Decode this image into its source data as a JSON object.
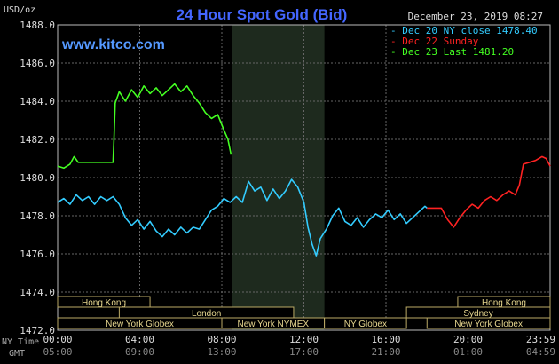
{
  "chart_data": {
    "type": "line",
    "title": "24 Hour Spot Gold (Bid)",
    "website": "www.kitco.com",
    "timestamp": "December 23, 2019 08:27",
    "y_unit_label": "USD/oz",
    "ylim": [
      1472.0,
      1488.0
    ],
    "y_ticks": [
      "1488.0",
      "1486.0",
      "1484.0",
      "1482.0",
      "1480.0",
      "1478.0",
      "1476.0",
      "1474.0",
      "1472.0"
    ],
    "x_axis": {
      "row_labels": [
        "NY Time",
        "GMT"
      ],
      "ny_ticks": [
        "00:00",
        "04:00",
        "08:00",
        "12:00",
        "16:00",
        "20:00",
        "23:59"
      ],
      "gmt_ticks": [
        "05:00",
        "09:00",
        "13:00",
        "17:00",
        "21:00",
        "01:00",
        "04:59"
      ],
      "xlim": [
        0,
        24
      ]
    },
    "legend": {
      "position": "top-right",
      "entries": [
        {
          "label": "Dec 20 NY close 1478.40",
          "color": "#33ccff"
        },
        {
          "label": "Dec 22 Sunday",
          "color": "#ff2222"
        },
        {
          "label": "Dec 23 Last 1481.20",
          "color": "#44ff22"
        }
      ]
    },
    "shaded_range": [
      8.5,
      13.0
    ],
    "sessions": [
      {
        "label": "Hong Kong",
        "row": 0,
        "x0": 0,
        "x1": 4.5
      },
      {
        "label": "Hong Kong",
        "row": 0,
        "x0": 19.5,
        "x1": 24
      },
      {
        "label": "London",
        "row": 1,
        "x0": 3.0,
        "x1": 11.5
      },
      {
        "label": "Sydney",
        "row": 1,
        "x0": 17.0,
        "x1": 24
      },
      {
        "label": "New York Globex",
        "row": 2,
        "x0": 0,
        "x1": 8.0
      },
      {
        "label": "New York NYMEX",
        "row": 2,
        "x0": 8.0,
        "x1": 13.0
      },
      {
        "label": "NY Globex",
        "row": 2,
        "x0": 13.0,
        "x1": 17.0
      },
      {
        "label": "New York Globex",
        "row": 2,
        "x0": 18.0,
        "x1": 24
      }
    ],
    "series": [
      {
        "name": "Dec 20",
        "color": "#33ccff",
        "points": [
          [
            0.0,
            1478.7
          ],
          [
            0.3,
            1478.9
          ],
          [
            0.6,
            1478.6
          ],
          [
            0.9,
            1479.1
          ],
          [
            1.2,
            1478.8
          ],
          [
            1.5,
            1479.0
          ],
          [
            1.8,
            1478.6
          ],
          [
            2.1,
            1479.0
          ],
          [
            2.4,
            1478.8
          ],
          [
            2.7,
            1479.0
          ],
          [
            3.0,
            1478.6
          ],
          [
            3.3,
            1477.9
          ],
          [
            3.6,
            1477.5
          ],
          [
            3.9,
            1477.8
          ],
          [
            4.2,
            1477.3
          ],
          [
            4.5,
            1477.7
          ],
          [
            4.8,
            1477.2
          ],
          [
            5.1,
            1476.9
          ],
          [
            5.4,
            1477.3
          ],
          [
            5.7,
            1477.0
          ],
          [
            6.0,
            1477.4
          ],
          [
            6.3,
            1477.1
          ],
          [
            6.6,
            1477.4
          ],
          [
            6.9,
            1477.3
          ],
          [
            7.2,
            1477.8
          ],
          [
            7.5,
            1478.3
          ],
          [
            7.8,
            1478.5
          ],
          [
            8.1,
            1478.9
          ],
          [
            8.4,
            1478.7
          ],
          [
            8.7,
            1479.0
          ],
          [
            9.0,
            1478.7
          ],
          [
            9.3,
            1479.8
          ],
          [
            9.6,
            1479.3
          ],
          [
            9.9,
            1479.5
          ],
          [
            10.2,
            1478.8
          ],
          [
            10.5,
            1479.4
          ],
          [
            10.8,
            1478.9
          ],
          [
            11.1,
            1479.3
          ],
          [
            11.4,
            1479.9
          ],
          [
            11.7,
            1479.5
          ],
          [
            12.0,
            1478.7
          ],
          [
            12.2,
            1477.4
          ],
          [
            12.4,
            1476.5
          ],
          [
            12.6,
            1475.9
          ],
          [
            12.8,
            1476.8
          ],
          [
            13.1,
            1477.3
          ],
          [
            13.4,
            1478.0
          ],
          [
            13.7,
            1478.4
          ],
          [
            14.0,
            1477.7
          ],
          [
            14.3,
            1477.5
          ],
          [
            14.6,
            1477.9
          ],
          [
            14.9,
            1477.4
          ],
          [
            15.2,
            1477.8
          ],
          [
            15.5,
            1478.1
          ],
          [
            15.8,
            1477.9
          ],
          [
            16.1,
            1478.3
          ],
          [
            16.4,
            1477.8
          ],
          [
            16.7,
            1478.1
          ],
          [
            17.0,
            1477.6
          ],
          [
            17.3,
            1477.9
          ],
          [
            17.6,
            1478.2
          ],
          [
            17.9,
            1478.5
          ],
          [
            18.0,
            1478.4
          ]
        ]
      },
      {
        "name": "Dec 22",
        "color": "#ff2222",
        "points": [
          [
            18.0,
            1478.4
          ],
          [
            18.7,
            1478.4
          ],
          [
            19.0,
            1477.8
          ],
          [
            19.3,
            1477.4
          ],
          [
            19.6,
            1477.9
          ],
          [
            19.9,
            1478.3
          ],
          [
            20.2,
            1478.6
          ],
          [
            20.5,
            1478.4
          ],
          [
            20.8,
            1478.8
          ],
          [
            21.1,
            1479.0
          ],
          [
            21.4,
            1478.8
          ],
          [
            21.7,
            1479.1
          ],
          [
            22.0,
            1479.3
          ],
          [
            22.3,
            1479.1
          ],
          [
            22.5,
            1479.6
          ],
          [
            22.7,
            1480.7
          ],
          [
            23.0,
            1480.8
          ],
          [
            23.3,
            1480.9
          ],
          [
            23.6,
            1481.1
          ],
          [
            23.8,
            1481.0
          ],
          [
            24.0,
            1480.6
          ]
        ]
      },
      {
        "name": "Dec 23",
        "color": "#44ff22",
        "points": [
          [
            0.0,
            1480.6
          ],
          [
            0.3,
            1480.5
          ],
          [
            0.6,
            1480.7
          ],
          [
            0.8,
            1481.1
          ],
          [
            1.0,
            1480.8
          ],
          [
            1.3,
            1480.8
          ],
          [
            2.7,
            1480.8
          ],
          [
            2.75,
            1482.2
          ],
          [
            2.8,
            1483.9
          ],
          [
            3.0,
            1484.5
          ],
          [
            3.3,
            1484.0
          ],
          [
            3.6,
            1484.6
          ],
          [
            3.9,
            1484.2
          ],
          [
            4.2,
            1484.8
          ],
          [
            4.5,
            1484.4
          ],
          [
            4.8,
            1484.7
          ],
          [
            5.1,
            1484.3
          ],
          [
            5.4,
            1484.6
          ],
          [
            5.7,
            1484.9
          ],
          [
            6.0,
            1484.5
          ],
          [
            6.3,
            1484.8
          ],
          [
            6.6,
            1484.3
          ],
          [
            6.9,
            1483.9
          ],
          [
            7.2,
            1483.4
          ],
          [
            7.5,
            1483.1
          ],
          [
            7.8,
            1483.3
          ],
          [
            8.1,
            1482.5
          ],
          [
            8.3,
            1482.0
          ],
          [
            8.45,
            1481.2
          ]
        ]
      }
    ]
  }
}
